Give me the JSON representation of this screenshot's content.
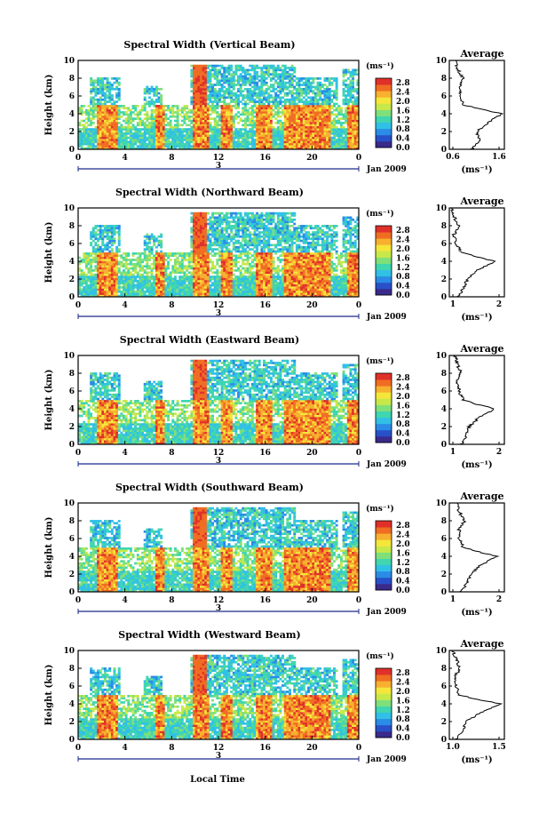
{
  "figure": {
    "xlabel": "Local Time",
    "date_label": "Jan 2009",
    "day_label": "3",
    "cbar_unit": "(ms⁻¹)",
    "avg_title": "Average",
    "avg_xlabel": "(ms⁻¹)",
    "ylabel": "Height (km)"
  },
  "colors": {
    "scale": [
      "#3a2a8a",
      "#2850c8",
      "#2a8ce6",
      "#31c0e6",
      "#3fd6b0",
      "#7fe07a",
      "#c8e84a",
      "#f5e63a",
      "#f7b02f",
      "#f06d22",
      "#e0302a"
    ]
  },
  "chart_data": [
    {
      "type": "heatmap",
      "title": "Spectral Width (Vertical Beam)",
      "xlabel": "Local Time",
      "ylabel": "Height (km)",
      "xlim": [
        0,
        24
      ],
      "ylim": [
        0,
        10
      ],
      "x_ticks": [
        "0",
        "4",
        "8",
        "12",
        "16",
        "20",
        "0"
      ],
      "y_ticks": [
        "0",
        "2",
        "4",
        "6",
        "8",
        "10"
      ],
      "colorbar": {
        "unit": "(ms⁻¹)",
        "ticks": [
          "0.0",
          "0.4",
          "0.8",
          "1.2",
          "1.6",
          "2.0",
          "2.4",
          "2.8"
        ],
        "range": [
          0,
          3.0
        ]
      },
      "profile": {
        "title": "Average",
        "xlabel": "(ms⁻¹)",
        "x_ticks": [
          "0.6",
          "1.6"
        ],
        "xlim": [
          0.6,
          1.6
        ],
        "heights": [
          0,
          1,
          2,
          3,
          4,
          4.5,
          5,
          6,
          7,
          8,
          9,
          10
        ],
        "values": [
          1.0,
          1.15,
          1.1,
          1.3,
          1.55,
          1.2,
          0.85,
          0.8,
          0.78,
          0.85,
          0.75,
          0.7
        ]
      }
    },
    {
      "type": "heatmap",
      "title": "Spectral Width (Northward Beam)",
      "xlabel": "Local Time",
      "ylabel": "Height (km)",
      "xlim": [
        0,
        24
      ],
      "ylim": [
        0,
        10
      ],
      "x_ticks": [
        "0",
        "4",
        "8",
        "12",
        "16",
        "20",
        "0"
      ],
      "y_ticks": [
        "0",
        "2",
        "4",
        "6",
        "8",
        "10"
      ],
      "colorbar": {
        "unit": "(ms⁻¹)",
        "ticks": [
          "0.0",
          "0.4",
          "0.8",
          "1.2",
          "1.6",
          "2.0",
          "2.4",
          "2.8"
        ],
        "range": [
          0,
          3.0
        ]
      },
      "profile": {
        "title": "Average",
        "xlabel": "(ms⁻¹)",
        "x_ticks": [
          "1",
          "2"
        ],
        "xlim": [
          1,
          2.2
        ],
        "heights": [
          0,
          1,
          2,
          3,
          4,
          4.5,
          5,
          6,
          7,
          8,
          9,
          10
        ],
        "values": [
          1.2,
          1.3,
          1.4,
          1.6,
          2.0,
          1.6,
          1.25,
          1.15,
          1.1,
          1.2,
          1.1,
          1.05
        ]
      }
    },
    {
      "type": "heatmap",
      "title": "Spectral Width (Eastward Beam)",
      "xlabel": "Local Time",
      "ylabel": "Height (km)",
      "xlim": [
        0,
        24
      ],
      "ylim": [
        0,
        10
      ],
      "x_ticks": [
        "0",
        "4",
        "8",
        "12",
        "16",
        "20",
        "0"
      ],
      "y_ticks": [
        "0",
        "2",
        "4",
        "6",
        "8",
        "10"
      ],
      "colorbar": {
        "unit": "(ms⁻¹)",
        "ticks": [
          "0.0",
          "0.4",
          "0.8",
          "1.2",
          "1.6",
          "2.0",
          "2.4",
          "2.8"
        ],
        "range": [
          0,
          3.0
        ]
      },
      "profile": {
        "title": "Average",
        "xlabel": "(ms⁻¹)",
        "x_ticks": [
          "1",
          "2"
        ],
        "xlim": [
          0.8,
          2.2
        ],
        "heights": [
          0,
          1,
          2,
          3,
          4,
          4.5,
          5,
          6,
          7,
          8,
          9,
          10
        ],
        "values": [
          1.1,
          1.25,
          1.3,
          1.55,
          1.95,
          1.5,
          1.15,
          1.05,
          1.0,
          1.1,
          1.0,
          0.95
        ]
      }
    },
    {
      "type": "heatmap",
      "title": "Spectral Width (Southward Beam)",
      "xlabel": "Local Time",
      "ylabel": "Height (km)",
      "xlim": [
        0,
        24
      ],
      "ylim": [
        0,
        10
      ],
      "x_ticks": [
        "0",
        "4",
        "8",
        "12",
        "16",
        "20",
        "0"
      ],
      "y_ticks": [
        "0",
        "2",
        "4",
        "6",
        "8",
        "10"
      ],
      "colorbar": {
        "unit": "(ms⁻¹)",
        "ticks": [
          "0.0",
          "0.4",
          "0.8",
          "1.2",
          "1.6",
          "2.0",
          "2.4",
          "2.8"
        ],
        "range": [
          0,
          3.0
        ]
      },
      "profile": {
        "title": "Average",
        "xlabel": "(ms⁻¹)",
        "x_ticks": [
          "1",
          "2"
        ],
        "xlim": [
          0.8,
          2.2
        ],
        "heights": [
          0,
          1,
          2,
          3,
          4,
          4.5,
          5,
          6,
          7,
          8,
          9,
          10
        ],
        "values": [
          1.1,
          1.25,
          1.35,
          1.6,
          2.0,
          1.55,
          1.15,
          1.05,
          1.05,
          1.2,
          1.05,
          1.0
        ]
      }
    },
    {
      "type": "heatmap",
      "title": "Spectral Width (Westward Beam)",
      "xlabel": "Local Time",
      "ylabel": "Height (km)",
      "xlim": [
        0,
        24
      ],
      "ylim": [
        0,
        10
      ],
      "x_ticks": [
        "0",
        "4",
        "8",
        "12",
        "16",
        "20",
        "0"
      ],
      "y_ticks": [
        "0",
        "2",
        "4",
        "6",
        "8",
        "10"
      ],
      "colorbar": {
        "unit": "(ms⁻¹)",
        "ticks": [
          "0.0",
          "0.4",
          "0.8",
          "1.2",
          "1.6",
          "2.0",
          "2.4",
          "2.8"
        ],
        "range": [
          0,
          3.0
        ]
      },
      "profile": {
        "title": "Average",
        "xlabel": "(ms⁻¹)",
        "x_ticks": [
          "1.0",
          "1.5"
        ],
        "xlim": [
          0.9,
          1.7
        ],
        "heights": [
          0,
          1,
          2,
          3,
          4,
          4.5,
          5,
          6,
          7,
          8,
          9,
          10
        ],
        "values": [
          1.0,
          1.1,
          1.15,
          1.35,
          1.65,
          1.3,
          1.05,
          1.0,
          0.98,
          1.05,
          1.0,
          0.95
        ]
      }
    }
  ]
}
